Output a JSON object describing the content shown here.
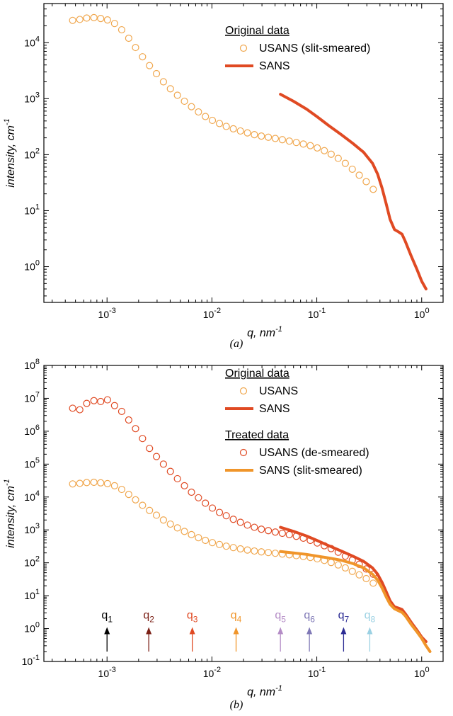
{
  "chart_data": [
    {
      "type": "scatter",
      "panel_label": "(a)",
      "xlabel": "q, nm-1",
      "ylabel": "intensity, cm-1",
      "xscale": "log",
      "yscale": "log",
      "xlim": [
        0.00025,
        1.6
      ],
      "ylim": [
        0.23,
        50000
      ],
      "xticks": [
        0.001,
        0.01,
        0.1,
        1
      ],
      "yticks": [
        1,
        10,
        100,
        1000,
        10000
      ],
      "xtick_labels": [
        "10^-3",
        "10^-2",
        "10^-1",
        "10^0"
      ],
      "ytick_labels": [
        "10^0",
        "10^1",
        "10^2",
        "10^3",
        "10^4"
      ],
      "legend": {
        "heading": "Original data",
        "items": [
          {
            "label": "USANS (slit-smeared)",
            "marker": "circle",
            "color": "#f0a74e"
          },
          {
            "label": "SANS",
            "marker": "line",
            "color": "#e04a23"
          }
        ]
      },
      "series": [
        {
          "name": "USANS (slit-smeared)",
          "marker": "circle",
          "color": "#f0a74e",
          "x": [
            0.00047,
            0.00055,
            0.00064,
            0.00075,
            0.00087,
            0.00101,
            0.00118,
            0.00138,
            0.00161,
            0.00187,
            0.00218,
            0.00254,
            0.00296,
            0.00345,
            0.00402,
            0.00469,
            0.00547,
            0.00638,
            0.00744,
            0.00867,
            0.0101,
            0.0118,
            0.0137,
            0.016,
            0.0187,
            0.0218,
            0.0254,
            0.0296,
            0.0345,
            0.0402,
            0.0469,
            0.0547,
            0.0638,
            0.0744,
            0.0867,
            0.101,
            0.118,
            0.137,
            0.16,
            0.187,
            0.218,
            0.254,
            0.296,
            0.345
          ],
          "y": [
            25000,
            26000,
            27500,
            28000,
            27000,
            25500,
            22000,
            17000,
            12000,
            8200,
            5600,
            3900,
            2800,
            2000,
            1500,
            1150,
            900,
            720,
            580,
            480,
            410,
            360,
            320,
            290,
            265,
            245,
            228,
            215,
            205,
            195,
            185,
            175,
            165,
            155,
            145,
            132,
            118,
            102,
            86,
            70,
            55,
            43,
            33,
            24
          ]
        },
        {
          "name": "SANS",
          "marker": "line",
          "color": "#e04a23",
          "x": [
            0.045,
            0.06,
            0.08,
            0.1,
            0.13,
            0.17,
            0.22,
            0.28,
            0.34,
            0.38,
            0.42,
            0.46,
            0.5,
            0.55,
            0.6,
            0.65,
            0.7,
            0.8,
            0.9,
            1.0,
            1.1
          ],
          "y": [
            1200,
            900,
            650,
            480,
            330,
            230,
            160,
            110,
            70,
            45,
            25,
            13,
            7,
            4.6,
            4.2,
            3.8,
            2.8,
            1.5,
            0.9,
            0.55,
            0.4
          ]
        }
      ]
    },
    {
      "type": "scatter",
      "panel_label": "(b)",
      "xlabel": "q, nm-1",
      "ylabel": "intensity, cm-1",
      "xscale": "log",
      "yscale": "log",
      "xlim": [
        0.00025,
        1.6
      ],
      "ylim": [
        0.1,
        100000000
      ],
      "xticks": [
        0.001,
        0.01,
        0.1,
        1
      ],
      "yticks": [
        0.1,
        1,
        10,
        100,
        1000,
        10000,
        100000,
        1000000,
        10000000,
        100000000
      ],
      "xtick_labels": [
        "10^-3",
        "10^-2",
        "10^-1",
        "10^0"
      ],
      "ytick_labels": [
        "10^-1",
        "10^0",
        "10^1",
        "10^2",
        "10^3",
        "10^4",
        "10^5",
        "10^6",
        "10^7",
        "10^8"
      ],
      "legend": {
        "heading": "Original data",
        "items": [
          {
            "label": "USANS",
            "marker": "circle",
            "color": "#f0a74e"
          },
          {
            "label": "SANS",
            "marker": "line",
            "color": "#e04a23"
          }
        ],
        "heading2": "Treated data",
        "items2": [
          {
            "label": "USANS (de-smeared)",
            "marker": "circle",
            "color": "#e04a23"
          },
          {
            "label": "SANS (slit-smeared)",
            "marker": "line",
            "color": "#f0952a"
          }
        ]
      },
      "series": [
        {
          "name": "USANS (de-smeared)",
          "marker": "circle",
          "color": "#e04a23",
          "x": [
            0.00047,
            0.00055,
            0.00064,
            0.00075,
            0.00087,
            0.00101,
            0.00118,
            0.00138,
            0.00161,
            0.00187,
            0.00218,
            0.00254,
            0.00296,
            0.00345,
            0.00402,
            0.00469,
            0.00547,
            0.00638,
            0.00744,
            0.00867,
            0.0101,
            0.0118,
            0.0137,
            0.016,
            0.0187,
            0.0218,
            0.0254,
            0.0296,
            0.0345,
            0.0402,
            0.0469,
            0.0547,
            0.0638,
            0.0744,
            0.0867,
            0.101,
            0.118,
            0.137,
            0.16,
            0.187,
            0.218,
            0.254,
            0.296,
            0.345
          ],
          "y": [
            5000000,
            4500000,
            7000000,
            8500000,
            8000000,
            9000000,
            6000000,
            4000000,
            2200000,
            1200000,
            600000,
            300000,
            170000,
            100000,
            60000,
            36000,
            22000,
            14000,
            9500,
            6500,
            4600,
            3400,
            2700,
            2100,
            1700,
            1400,
            1200,
            1050,
            950,
            860,
            790,
            720,
            640,
            560,
            480,
            400,
            330,
            270,
            210,
            160,
            120,
            90,
            65,
            45
          ]
        },
        {
          "name": "USANS",
          "marker": "circle",
          "color": "#f0a74e",
          "x": [
            0.00047,
            0.00055,
            0.00064,
            0.00075,
            0.00087,
            0.00101,
            0.00118,
            0.00138,
            0.00161,
            0.00187,
            0.00218,
            0.00254,
            0.00296,
            0.00345,
            0.00402,
            0.00469,
            0.00547,
            0.00638,
            0.00744,
            0.00867,
            0.0101,
            0.0118,
            0.0137,
            0.016,
            0.0187,
            0.0218,
            0.0254,
            0.0296,
            0.0345,
            0.0402,
            0.0469,
            0.0547,
            0.0638,
            0.0744,
            0.0867,
            0.101,
            0.118,
            0.137,
            0.16,
            0.187,
            0.218,
            0.254,
            0.296,
            0.345
          ],
          "y": [
            25000,
            26000,
            27500,
            28000,
            27000,
            25500,
            22000,
            17000,
            12000,
            8200,
            5600,
            3900,
            2800,
            2000,
            1500,
            1150,
            900,
            720,
            580,
            480,
            410,
            360,
            320,
            290,
            265,
            245,
            228,
            215,
            205,
            195,
            185,
            175,
            165,
            155,
            145,
            132,
            118,
            102,
            86,
            70,
            55,
            43,
            33,
            24
          ]
        },
        {
          "name": "SANS",
          "marker": "line",
          "color": "#e04a23",
          "x": [
            0.045,
            0.06,
            0.08,
            0.1,
            0.13,
            0.17,
            0.22,
            0.28,
            0.34,
            0.38,
            0.42,
            0.46,
            0.5,
            0.55,
            0.6,
            0.65,
            0.7,
            0.8,
            0.9,
            1.0,
            1.1
          ],
          "y": [
            1200,
            900,
            650,
            480,
            330,
            230,
            160,
            110,
            70,
            45,
            25,
            13,
            7,
            4.6,
            4.2,
            3.8,
            2.8,
            1.5,
            0.9,
            0.55,
            0.4
          ]
        },
        {
          "name": "SANS (slit-smeared)",
          "marker": "line",
          "color": "#f0952a",
          "x": [
            0.045,
            0.06,
            0.08,
            0.1,
            0.13,
            0.17,
            0.22,
            0.28,
            0.34,
            0.38,
            0.42,
            0.46,
            0.5,
            0.55,
            0.6,
            0.65,
            0.7,
            0.8,
            0.9,
            1.0,
            1.1,
            1.2
          ],
          "y": [
            220,
            200,
            180,
            160,
            140,
            120,
            95,
            70,
            45,
            30,
            17,
            9,
            5.5,
            4,
            3.5,
            3.1,
            2.4,
            1.3,
            0.8,
            0.5,
            0.3,
            0.2
          ]
        }
      ],
      "markers": [
        {
          "label": "q1",
          "q": 0.001,
          "color": "#000000"
        },
        {
          "label": "q2",
          "q": 0.0025,
          "color": "#7b2016"
        },
        {
          "label": "q3",
          "q": 0.0065,
          "color": "#e04a23"
        },
        {
          "label": "q4",
          "q": 0.017,
          "color": "#f0952a"
        },
        {
          "label": "q5",
          "q": 0.045,
          "color": "#b48cc6"
        },
        {
          "label": "q6",
          "q": 0.085,
          "color": "#7f78b6"
        },
        {
          "label": "q7",
          "q": 0.18,
          "color": "#2c2c94"
        },
        {
          "label": "q8",
          "q": 0.32,
          "color": "#9bd1e3"
        }
      ]
    }
  ]
}
